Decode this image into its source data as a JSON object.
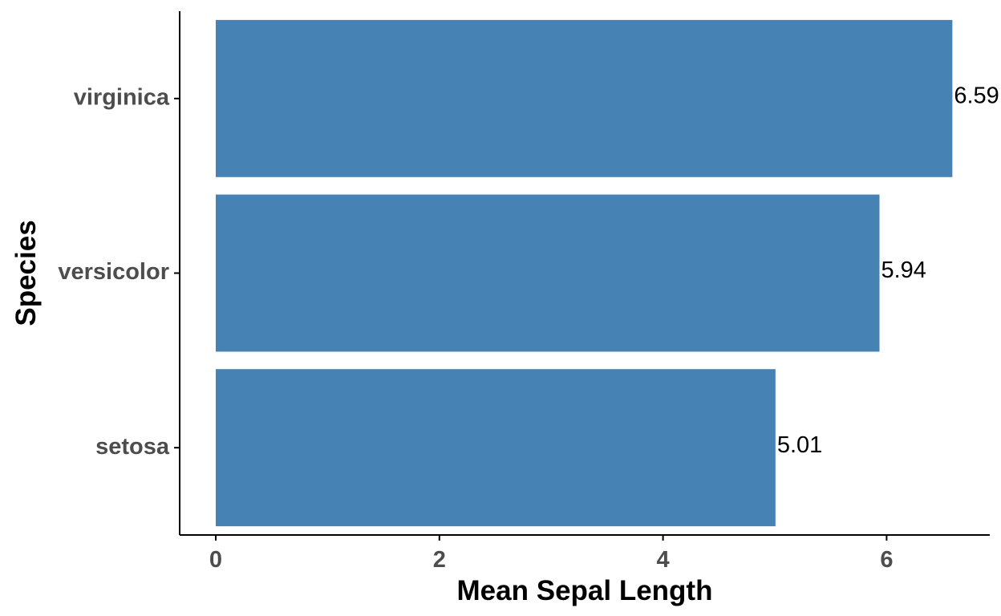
{
  "chart_data": {
    "type": "bar",
    "orientation": "horizontal",
    "categories": [
      "setosa",
      "versicolor",
      "virginica"
    ],
    "values": [
      5.006,
      5.936,
      6.588
    ],
    "data_labels": [
      "5.01",
      "5.94",
      "6.59"
    ],
    "xlabel": "Mean Sepal Length",
    "ylabel": "Species",
    "xlim": [
      0,
      6.9
    ],
    "x_ticks": [
      0,
      2,
      4,
      6
    ],
    "x_tick_labels": [
      "0",
      "2",
      "4",
      "6"
    ],
    "grid": false,
    "legend": "none",
    "colors": {
      "bar": "#4682B4",
      "axis": "#000000",
      "tick_text": "#4d4d4d",
      "title_text": "#000000"
    }
  }
}
